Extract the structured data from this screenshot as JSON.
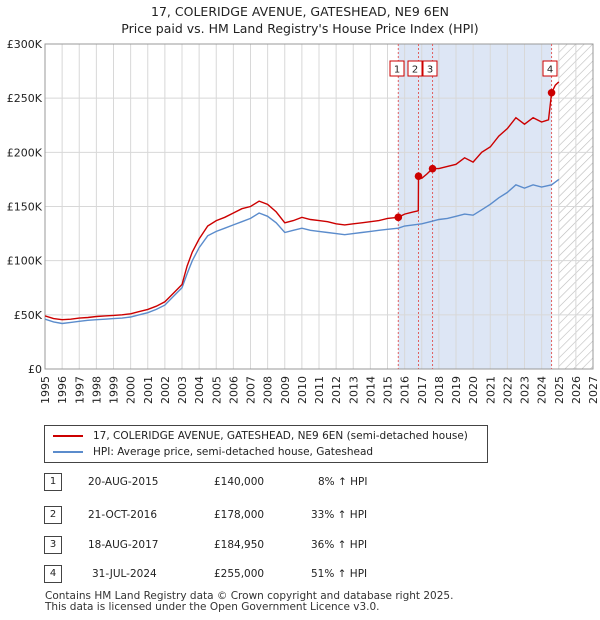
{
  "title_line1": "17, COLERIDGE AVENUE, GATESHEAD, NE9 6EN",
  "title_line2": "Price paid vs. HM Land Registry's House Price Index (HPI)",
  "chart_data": {
    "type": "line",
    "title": "17, COLERIDGE AVENUE, GATESHEAD, NE9 6EN",
    "subtitle": "Price paid vs. HM Land Registry's House Price Index (HPI)",
    "xlabel": "",
    "ylabel": "",
    "xlim": [
      1995,
      2027
    ],
    "ylim": [
      0,
      300000
    ],
    "x_ticks": [
      1995,
      1996,
      1997,
      1998,
      1999,
      2000,
      2001,
      2002,
      2003,
      2004,
      2005,
      2006,
      2007,
      2008,
      2009,
      2010,
      2011,
      2012,
      2013,
      2014,
      2015,
      2016,
      2017,
      2018,
      2019,
      2020,
      2021,
      2022,
      2023,
      2024,
      2025,
      2026,
      2027
    ],
    "x_tick_labels": [
      "1995",
      "1996",
      "1997",
      "1998",
      "1999",
      "2000",
      "2001",
      "2002",
      "2003",
      "2004",
      "2005",
      "2006",
      "2007",
      "2008",
      "2009",
      "2010",
      "2011",
      "2012",
      "2013",
      "2014",
      "2015",
      "2016",
      "2017",
      "2018",
      "2019",
      "2020",
      "2021",
      "2022",
      "2023",
      "2024",
      "2025",
      "2026",
      "2027"
    ],
    "y_ticks": [
      0,
      50000,
      100000,
      150000,
      200000,
      250000,
      300000
    ],
    "y_tick_labels": [
      "£0",
      "£50K",
      "£100K",
      "£150K",
      "£200K",
      "£250K",
      "£300K"
    ],
    "grid": true,
    "legend_position": "below",
    "hatched_future_from": 2025.0,
    "highlight_span": [
      2015.63,
      2024.58
    ],
    "series": [
      {
        "name": "17, COLERIDGE AVENUE, GATESHEAD, NE9 6EN (semi-detached house)",
        "color": "#cc0000",
        "points": [
          [
            1995.0,
            49000
          ],
          [
            1995.5,
            46500
          ],
          [
            1996.0,
            45500
          ],
          [
            1996.5,
            46000
          ],
          [
            1997.0,
            47000
          ],
          [
            1997.5,
            47500
          ],
          [
            1998.0,
            48500
          ],
          [
            1998.5,
            49000
          ],
          [
            1999.0,
            49500
          ],
          [
            1999.5,
            50000
          ],
          [
            2000.0,
            51000
          ],
          [
            2000.5,
            53000
          ],
          [
            2001.0,
            55000
          ],
          [
            2001.5,
            58000
          ],
          [
            2002.0,
            62000
          ],
          [
            2002.5,
            70000
          ],
          [
            2003.0,
            78000
          ],
          [
            2003.3,
            95000
          ],
          [
            2003.6,
            108000
          ],
          [
            2004.0,
            120000
          ],
          [
            2004.5,
            132000
          ],
          [
            2005.0,
            137000
          ],
          [
            2005.5,
            140000
          ],
          [
            2006.0,
            144000
          ],
          [
            2006.5,
            148000
          ],
          [
            2007.0,
            150000
          ],
          [
            2007.5,
            155000
          ],
          [
            2008.0,
            152000
          ],
          [
            2008.5,
            145000
          ],
          [
            2009.0,
            135000
          ],
          [
            2009.5,
            137000
          ],
          [
            2010.0,
            140000
          ],
          [
            2010.5,
            138000
          ],
          [
            2011.0,
            137000
          ],
          [
            2011.5,
            136000
          ],
          [
            2012.0,
            134000
          ],
          [
            2012.5,
            133000
          ],
          [
            2013.0,
            134000
          ],
          [
            2013.5,
            135000
          ],
          [
            2014.0,
            136000
          ],
          [
            2014.5,
            137000
          ],
          [
            2015.0,
            139000
          ],
          [
            2015.63,
            140000
          ],
          [
            2016.0,
            143000
          ],
          [
            2016.5,
            145000
          ],
          [
            2016.8,
            146000
          ],
          [
            2016.81,
            178000
          ],
          [
            2017.0,
            176000
          ],
          [
            2017.3,
            180000
          ],
          [
            2017.63,
            184950
          ],
          [
            2018.0,
            185000
          ],
          [
            2018.5,
            187000
          ],
          [
            2019.0,
            189000
          ],
          [
            2019.5,
            195000
          ],
          [
            2020.0,
            191000
          ],
          [
            2020.5,
            200000
          ],
          [
            2021.0,
            205000
          ],
          [
            2021.5,
            215000
          ],
          [
            2022.0,
            222000
          ],
          [
            2022.5,
            232000
          ],
          [
            2023.0,
            226000
          ],
          [
            2023.5,
            232000
          ],
          [
            2024.0,
            228000
          ],
          [
            2024.4,
            230000
          ],
          [
            2024.58,
            255000
          ],
          [
            2024.8,
            262000
          ],
          [
            2025.0,
            265000
          ]
        ]
      },
      {
        "name": "HPI: Average price, semi-detached house, Gateshead",
        "color": "#5b8ccc",
        "points": [
          [
            1995.0,
            46000
          ],
          [
            1995.5,
            43500
          ],
          [
            1996.0,
            42000
          ],
          [
            1996.5,
            43000
          ],
          [
            1997.0,
            44000
          ],
          [
            1997.5,
            45000
          ],
          [
            1998.0,
            45500
          ],
          [
            1998.5,
            46000
          ],
          [
            1999.0,
            46500
          ],
          [
            1999.5,
            47000
          ],
          [
            2000.0,
            48000
          ],
          [
            2000.5,
            50000
          ],
          [
            2001.0,
            52000
          ],
          [
            2001.5,
            55000
          ],
          [
            2002.0,
            59000
          ],
          [
            2002.5,
            67000
          ],
          [
            2003.0,
            75000
          ],
          [
            2003.3,
            88000
          ],
          [
            2003.6,
            100000
          ],
          [
            2004.0,
            112000
          ],
          [
            2004.5,
            123000
          ],
          [
            2005.0,
            127000
          ],
          [
            2005.5,
            130000
          ],
          [
            2006.0,
            133000
          ],
          [
            2006.5,
            136000
          ],
          [
            2007.0,
            139000
          ],
          [
            2007.5,
            144000
          ],
          [
            2008.0,
            141000
          ],
          [
            2008.5,
            135000
          ],
          [
            2009.0,
            126000
          ],
          [
            2009.5,
            128000
          ],
          [
            2010.0,
            130000
          ],
          [
            2010.5,
            128000
          ],
          [
            2011.0,
            127000
          ],
          [
            2011.5,
            126000
          ],
          [
            2012.0,
            125000
          ],
          [
            2012.5,
            124000
          ],
          [
            2013.0,
            125000
          ],
          [
            2013.5,
            126000
          ],
          [
            2014.0,
            127000
          ],
          [
            2014.5,
            128000
          ],
          [
            2015.0,
            129000
          ],
          [
            2015.63,
            130000
          ],
          [
            2016.0,
            132000
          ],
          [
            2016.5,
            133000
          ],
          [
            2017.0,
            134000
          ],
          [
            2017.5,
            136000
          ],
          [
            2018.0,
            138000
          ],
          [
            2018.5,
            139000
          ],
          [
            2019.0,
            141000
          ],
          [
            2019.5,
            143000
          ],
          [
            2020.0,
            142000
          ],
          [
            2020.5,
            147000
          ],
          [
            2021.0,
            152000
          ],
          [
            2021.5,
            158000
          ],
          [
            2022.0,
            163000
          ],
          [
            2022.5,
            170000
          ],
          [
            2023.0,
            167000
          ],
          [
            2023.5,
            170000
          ],
          [
            2024.0,
            168000
          ],
          [
            2024.58,
            170000
          ],
          [
            2025.0,
            175000
          ]
        ]
      }
    ],
    "sales": [
      {
        "label": "1",
        "x": 2015.63,
        "y": 140000
      },
      {
        "label": "2",
        "x": 2016.81,
        "y": 178000
      },
      {
        "label": "3",
        "x": 2017.63,
        "y": 184950
      },
      {
        "label": "4",
        "x": 2024.58,
        "y": 255000
      }
    ]
  },
  "legend": [
    {
      "label": "17, COLERIDGE AVENUE, GATESHEAD, NE9 6EN (semi-detached house)",
      "color": "#cc0000"
    },
    {
      "label": "HPI: Average price, semi-detached house, Gateshead",
      "color": "#5b8ccc"
    }
  ],
  "transactions": [
    {
      "num": "1",
      "date": "20-AUG-2015",
      "price": "£140,000",
      "hpi": "8% ↑ HPI"
    },
    {
      "num": "2",
      "date": "21-OCT-2016",
      "price": "£178,000",
      "hpi": "33% ↑ HPI"
    },
    {
      "num": "3",
      "date": "18-AUG-2017",
      "price": "£184,950",
      "hpi": "36% ↑ HPI"
    },
    {
      "num": "4",
      "date": "31-JUL-2024",
      "price": "£255,000",
      "hpi": "51% ↑ HPI"
    }
  ],
  "footer_line1": "Contains HM Land Registry data © Crown copyright and database right 2025.",
  "footer_line2": "This data is licensed under the Open Government Licence v3.0."
}
